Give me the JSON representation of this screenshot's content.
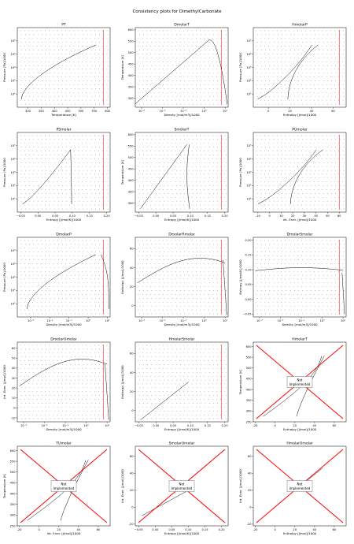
{
  "page_title": "Consistency plots for DimethylCarbonate",
  "colors": {
    "reference": "#000000",
    "limit": "#ff0000",
    "grid_points": "#555555",
    "not_impl_cross": "#ff0000"
  },
  "not_implemented_label": [
    "Not",
    "Implemented"
  ],
  "chart_data": [
    {
      "id": "PT",
      "type": "scatter",
      "title": "PT",
      "xlabel": "Temperature [K]",
      "ylabel": "Pressure [Pa]/1000",
      "xscale": "linear",
      "yscale": "log",
      "xlim": [
        260,
        610
      ],
      "ylim": [
        1,
        1000000
      ],
      "xticks": [
        300,
        350,
        400,
        450,
        500,
        550,
        600
      ],
      "yticks": [
        10,
        100,
        1000,
        10000,
        100000
      ],
      "ytick_labels": [
        "10¹",
        "10²",
        "10³",
        "10⁴",
        "10⁵"
      ],
      "curve": "vapor_pressure",
      "implemented": true
    },
    {
      "id": "DmolarT",
      "type": "scatter",
      "title": "DmolarT",
      "xlabel": "Density [mol/m3]/1000",
      "ylabel": "Temperature [K]",
      "xscale": "log",
      "yscale": "linear",
      "xlim": [
        0.0005,
        14
      ],
      "ylim": [
        260,
        610
      ],
      "xticks": [
        0.001,
        0.01,
        0.1,
        1,
        10
      ],
      "xtick_labels": [
        "10⁻³",
        "10⁻²",
        "10⁻¹",
        "10⁰",
        "10¹"
      ],
      "yticks": [
        300,
        350,
        400,
        450,
        500,
        550,
        600
      ],
      "curve": "dome_density",
      "implemented": true
    },
    {
      "id": "HmolarP",
      "type": "scatter",
      "title": "HmolarP",
      "xlabel": "Enthalpy [J/mol]/1000",
      "ylabel": "Pressure [Pa]/1000",
      "xscale": "linear",
      "yscale": "log",
      "xlim": [
        -14,
        72
      ],
      "ylim": [
        1,
        1000000
      ],
      "xticks": [
        0,
        20,
        40,
        60
      ],
      "yticks": [
        10,
        100,
        1000,
        10000,
        100000
      ],
      "ytick_labels": [
        "10¹",
        "10²",
        "10³",
        "10⁴",
        "10⁵"
      ],
      "curve": "dome_enthalpy",
      "implemented": true
    },
    {
      "id": "PSmolar",
      "type": "scatter",
      "title": "PSmolar",
      "xlabel": "Entropy [J/mol/K]/1000",
      "ylabel": "Pressure [Pa]/1000",
      "xscale": "linear",
      "yscale": "log",
      "xlim": [
        -0.06,
        0.21
      ],
      "ylim": [
        1,
        1000000
      ],
      "xticks": [
        -0.05,
        0.0,
        0.05,
        0.1,
        0.15,
        0.2
      ],
      "xtick_labels": [
        "−0.05",
        "0.00",
        "0.05",
        "0.10",
        "0.15",
        "0.20"
      ],
      "yticks": [
        10,
        100,
        1000,
        10000,
        100000
      ],
      "ytick_labels": [
        "10¹",
        "10²",
        "10³",
        "10⁴",
        "10⁵"
      ],
      "curve": "dome_entropy",
      "implemented": true
    },
    {
      "id": "SmolarT",
      "type": "scatter",
      "title": "SmolarT",
      "xlabel": "Entropy [J/mol/K]/1000",
      "ylabel": "Temperature [K]",
      "xscale": "linear",
      "yscale": "linear",
      "xlim": [
        -0.06,
        0.21
      ],
      "ylim": [
        260,
        610
      ],
      "xticks": [
        -0.05,
        0.0,
        0.05,
        0.1,
        0.15,
        0.2
      ],
      "xtick_labels": [
        "−0.05",
        "0.00",
        "0.05",
        "0.10",
        "0.15",
        "0.20"
      ],
      "yticks": [
        300,
        350,
        400,
        450,
        500,
        550,
        600
      ],
      "curve": "dome_TS",
      "implemented": true
    },
    {
      "id": "PUmolar",
      "type": "scatter",
      "title": "PUmolar",
      "xlabel": "Int. Ener. [J/mol]/1000",
      "ylabel": "Pressure [Pa]/1000",
      "xscale": "linear",
      "yscale": "log",
      "xlim": [
        -14,
        66
      ],
      "ylim": [
        1,
        1000000
      ],
      "xticks": [
        -10,
        0,
        10,
        20,
        30,
        40,
        50,
        60
      ],
      "yticks": [
        10,
        100,
        1000,
        10000,
        100000
      ],
      "ytick_labels": [
        "10¹",
        "10²",
        "10³",
        "10⁴",
        "10⁵"
      ],
      "curve": "dome_energy",
      "implemented": true
    },
    {
      "id": "DmolarP",
      "type": "scatter",
      "title": "DmolarP",
      "xlabel": "Density [mol/m3]/1000",
      "ylabel": "Pressure [Pa]/1000",
      "xscale": "log",
      "yscale": "log",
      "xlim": [
        0.0002,
        14
      ],
      "ylim": [
        1,
        1000000
      ],
      "xticks": [
        0.001,
        0.01,
        0.1,
        1,
        10
      ],
      "xtick_labels": [
        "10⁻³",
        "10⁻²",
        "10⁻¹",
        "10⁰",
        "10¹"
      ],
      "yticks": [
        10,
        100,
        1000,
        10000,
        100000
      ],
      "ytick_labels": [
        "10¹",
        "10²",
        "10³",
        "10⁴",
        "10⁵"
      ],
      "curve": "vp_density",
      "implemented": true
    },
    {
      "id": "DmolarHmolar",
      "type": "scatter",
      "title": "DmolarHmolar",
      "xlabel": "Density [mol/m3]/1000",
      "ylabel": "Enthalpy [J/mol]/1000",
      "xscale": "log",
      "yscale": "linear",
      "xlim": [
        0.0005,
        14
      ],
      "ylim": [
        -12,
        72
      ],
      "xticks": [
        0.001,
        0.01,
        0.1,
        1,
        10
      ],
      "xtick_labels": [
        "10⁻³",
        "10⁻²",
        "10⁻¹",
        "10⁰",
        "10¹"
      ],
      "yticks": [
        0,
        20,
        40,
        60
      ],
      "curve": "dome_rho_h",
      "implemented": true
    },
    {
      "id": "DmolarSmolar",
      "type": "scatter",
      "title": "DmolarSmolar",
      "xlabel": "Density [mol/m3]/1000",
      "ylabel": "Entropy [J/mol/K]/1000",
      "xscale": "log",
      "yscale": "linear",
      "xlim": [
        0.0005,
        14
      ],
      "ylim": [
        -0.06,
        0.21
      ],
      "xticks": [
        0.001,
        0.01,
        0.1,
        1,
        10
      ],
      "xtick_labels": [
        "10⁻³",
        "10⁻²",
        "10⁻¹",
        "10⁰",
        "10¹"
      ],
      "yticks": [
        -0.05,
        0.0,
        0.05,
        0.1,
        0.15,
        0.2
      ],
      "ytick_labels": [
        "−0.05",
        "0.00",
        "0.05",
        "0.10",
        "0.15",
        "0.20"
      ],
      "curve": "dome_rho_s",
      "implemented": true
    },
    {
      "id": "DmolarUmolar",
      "type": "scatter",
      "title": "DmolarUmolar",
      "xlabel": "Density [mol/m3]/1000",
      "ylabel": "Int. Ener. [J/mol]/1000",
      "xscale": "log",
      "yscale": "linear",
      "xlim": [
        0.0005,
        14
      ],
      "ylim": [
        -14,
        66
      ],
      "xticks": [
        0.001,
        0.01,
        0.1,
        1,
        10
      ],
      "xtick_labels": [
        "10⁻³",
        "10⁻²",
        "10⁻¹",
        "10⁰",
        "10¹"
      ],
      "yticks": [
        -10,
        0,
        10,
        20,
        30,
        40,
        50,
        60
      ],
      "curve": "dome_rho_u",
      "implemented": true
    },
    {
      "id": "HmolarSmolar",
      "type": "scatter",
      "title": "HmolarSmolar",
      "xlabel": "Entropy [J/mol/K]/1000",
      "ylabel": "Enthalpy [J/mol]/1000",
      "xscale": "linear",
      "yscale": "linear",
      "xlim": [
        -0.06,
        0.21
      ],
      "ylim": [
        -12,
        72
      ],
      "xticks": [
        -0.05,
        0.0,
        0.05,
        0.1,
        0.15,
        0.2
      ],
      "xtick_labels": [
        "−0.05",
        "0.00",
        "0.05",
        "0.10",
        "0.15",
        "0.20"
      ],
      "yticks": [
        0,
        20,
        40,
        60
      ],
      "curve": "dome_hs",
      "implemented": true
    },
    {
      "id": "HmolarT",
      "type": "line",
      "title": "HmolarT",
      "xlabel": "Enthalpy [J/mol]/1000",
      "ylabel": "Temperature [K]",
      "xscale": "linear",
      "yscale": "linear",
      "xlim": [
        -22,
        72
      ],
      "ylim": [
        250,
        620
      ],
      "xticks": [
        -20,
        0,
        20,
        40,
        60
      ],
      "yticks": [
        250,
        300,
        350,
        400,
        450,
        500,
        550,
        600
      ],
      "curve": "dome_hT",
      "implemented": false
    },
    {
      "id": "TUmolar",
      "type": "line",
      "title": "TUmolar",
      "xlabel": "Int. Ener. [J/mol]/1000",
      "ylabel": "Temperature [K]",
      "xscale": "linear",
      "yscale": "linear",
      "xlim": [
        -22,
        72
      ],
      "ylim": [
        250,
        620
      ],
      "xticks": [
        -20,
        0,
        20,
        40,
        60
      ],
      "yticks": [
        250,
        300,
        350,
        400,
        450,
        500,
        550,
        600
      ],
      "curve": "dome_uT",
      "implemented": false
    },
    {
      "id": "SmolarUmolar",
      "type": "line",
      "title": "SmolarUmolar",
      "xlabel": "Entropy [J/mol/K]/1000",
      "ylabel": "Int. Ener. [J/mol]/1000",
      "xscale": "linear",
      "yscale": "linear",
      "xlim": [
        -0.06,
        0.22
      ],
      "ylim": [
        -22,
        72
      ],
      "xticks": [
        -0.05,
        0.0,
        0.05,
        0.1,
        0.15,
        0.2
      ],
      "xtick_labels": [
        "−0.05",
        "0.00",
        "0.05",
        "0.10",
        "0.15",
        "0.20"
      ],
      "yticks": [
        -20,
        0,
        20,
        40,
        60
      ],
      "curve": "dome_su",
      "implemented": false
    },
    {
      "id": "HmolarUmolar",
      "type": "line",
      "title": "HmolarUmolar",
      "xlabel": "Enthalpy [J/mol]/1000",
      "ylabel": "Int. Ener. [J/mol]/1000",
      "xscale": "linear",
      "yscale": "linear",
      "xlim": [
        -22,
        72
      ],
      "ylim": [
        -22,
        72
      ],
      "xticks": [
        -20,
        0,
        20,
        40,
        60
      ],
      "yticks": [
        -20,
        0,
        20,
        40,
        60
      ],
      "curve": "dome_hu",
      "implemented": false
    }
  ]
}
